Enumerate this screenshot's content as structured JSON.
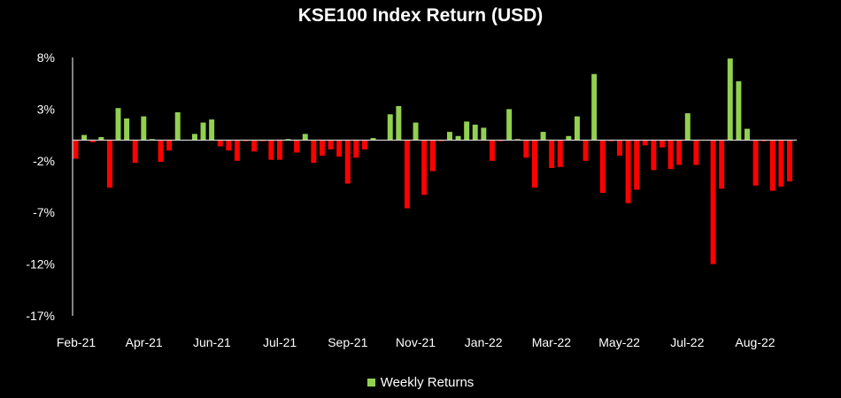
{
  "chart_data": {
    "type": "bar",
    "title": "KSE100 Index Return (USD)",
    "xlabel": "",
    "ylabel": "",
    "ylim": [
      -17,
      8
    ],
    "y_ticks": [
      "8%",
      "3%",
      "-2%",
      "-7%",
      "-12%",
      "-17%"
    ],
    "y_tick_values": [
      8,
      3,
      -2,
      -7,
      -12,
      -17
    ],
    "x_tick_labels": [
      "Feb-21",
      "Apr-21",
      "Jun-21",
      "Jul-21",
      "Sep-21",
      "Nov-21",
      "Jan-22",
      "Mar-22",
      "May-22",
      "Jul-22",
      "Aug-22"
    ],
    "legend_position": "bottom",
    "colors": {
      "positive": "#92d050",
      "negative": "#ff0000",
      "axis": "#d9d9d9"
    },
    "series": [
      {
        "name": "Weekly Returns",
        "values": [
          -1.8,
          0.5,
          -0.2,
          0.3,
          -4.6,
          3.1,
          2.1,
          -2.2,
          2.3,
          0.1,
          -2.1,
          -1.0,
          2.7,
          0.0,
          0.6,
          1.7,
          2.0,
          -0.6,
          -1.0,
          -2.0,
          -0.1,
          -1.1,
          -0.1,
          -1.9,
          -1.9,
          0.1,
          -1.2,
          0.6,
          -2.2,
          -1.5,
          -0.9,
          -1.6,
          -4.2,
          -1.7,
          -0.9,
          0.2,
          0.0,
          2.5,
          3.3,
          -6.6,
          1.7,
          -5.3,
          -3.0,
          -0.1,
          0.8,
          0.4,
          1.8,
          1.5,
          1.2,
          -2.0,
          -0.1,
          3.0,
          0.1,
          -1.7,
          -4.6,
          0.8,
          -2.7,
          -2.6,
          0.4,
          2.3,
          -2.0,
          6.4,
          -5.1,
          -0.1,
          -1.5,
          -6.1,
          -4.8,
          -0.5,
          -2.9,
          -0.7,
          -2.8,
          -2.4,
          2.6,
          -2.4,
          0.0,
          -12.0,
          -4.7,
          7.9,
          5.7,
          1.1,
          -4.4,
          -0.1,
          -4.9,
          -4.5,
          -4.0
        ]
      }
    ]
  }
}
